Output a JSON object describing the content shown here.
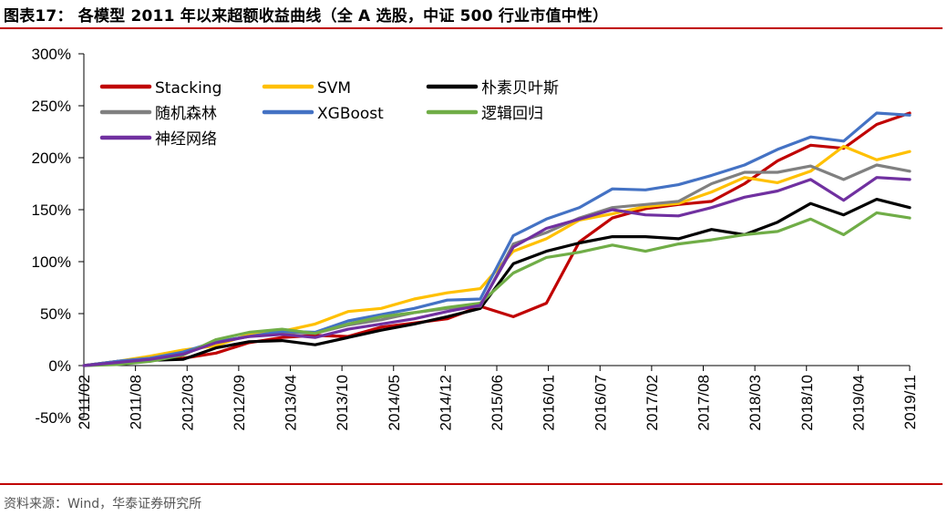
{
  "title": "图表17： 各模型 2011 年以来超额收益曲线（全 A 选股，中证 500 行业市值中性）",
  "source": "资料来源：Wind，华泰证券研究所",
  "chart_data": {
    "type": "line",
    "ylim": [
      -50,
      300
    ],
    "yticks": [
      "300%",
      "250%",
      "200%",
      "150%",
      "100%",
      "50%",
      "0%",
      "-50%"
    ],
    "ytick_values": [
      300,
      250,
      200,
      150,
      100,
      50,
      0,
      -50
    ],
    "xticks": [
      "2011/02",
      "2011/08",
      "2012/03",
      "2012/09",
      "2013/04",
      "2013/10",
      "2014/05",
      "2014/12",
      "2015/06",
      "2016/01",
      "2016/07",
      "2017/02",
      "2017/08",
      "2018/03",
      "2018/10",
      "2019/04",
      "2019/11"
    ],
    "legend_position": "top-left",
    "grid": false,
    "series": [
      {
        "name": "Stacking",
        "color": "#c00000",
        "values": [
          0,
          4,
          6,
          7,
          12,
          22,
          27,
          29,
          28,
          37,
          41,
          45,
          57,
          47,
          60,
          119,
          142,
          151,
          155,
          158,
          175,
          197,
          212,
          209,
          232,
          243
        ]
      },
      {
        "name": "SVM",
        "color": "#ffc000",
        "values": [
          0,
          4,
          9,
          15,
          19,
          30,
          33,
          40,
          52,
          55,
          64,
          70,
          74,
          110,
          122,
          140,
          146,
          153,
          156,
          167,
          181,
          176,
          187,
          211,
          198,
          206
        ]
      },
      {
        "name": "朴素贝叶斯",
        "color": "#000000",
        "values": [
          0,
          2,
          5,
          6,
          17,
          23,
          24,
          20,
          27,
          34,
          40,
          47,
          55,
          98,
          110,
          118,
          124,
          124,
          122,
          131,
          126,
          138,
          156,
          145,
          160,
          152
        ]
      },
      {
        "name": "随机森林",
        "color": "#808080",
        "values": [
          0,
          4,
          7,
          12,
          23,
          28,
          32,
          31,
          39,
          44,
          51,
          55,
          57,
          117,
          128,
          142,
          152,
          155,
          158,
          175,
          186,
          186,
          192,
          179,
          193,
          187
        ]
      },
      {
        "name": "XGBoost",
        "color": "#4472c4",
        "values": [
          0,
          4,
          7,
          13,
          23,
          28,
          33,
          32,
          43,
          49,
          55,
          63,
          64,
          125,
          141,
          152,
          170,
          169,
          174,
          183,
          193,
          208,
          220,
          216,
          243,
          241
        ]
      },
      {
        "name": "逻辑回归",
        "color": "#70ad47",
        "values": [
          0,
          1,
          4,
          10,
          25,
          32,
          35,
          31,
          40,
          47,
          51,
          56,
          60,
          89,
          104,
          109,
          116,
          110,
          117,
          121,
          126,
          129,
          141,
          126,
          147,
          142
        ]
      },
      {
        "name": "神经网络",
        "color": "#7030a0",
        "values": [
          0,
          3,
          6,
          11,
          22,
          28,
          30,
          27,
          35,
          40,
          45,
          52,
          58,
          114,
          132,
          141,
          150,
          145,
          144,
          152,
          162,
          168,
          179,
          159,
          181,
          179
        ]
      }
    ]
  }
}
